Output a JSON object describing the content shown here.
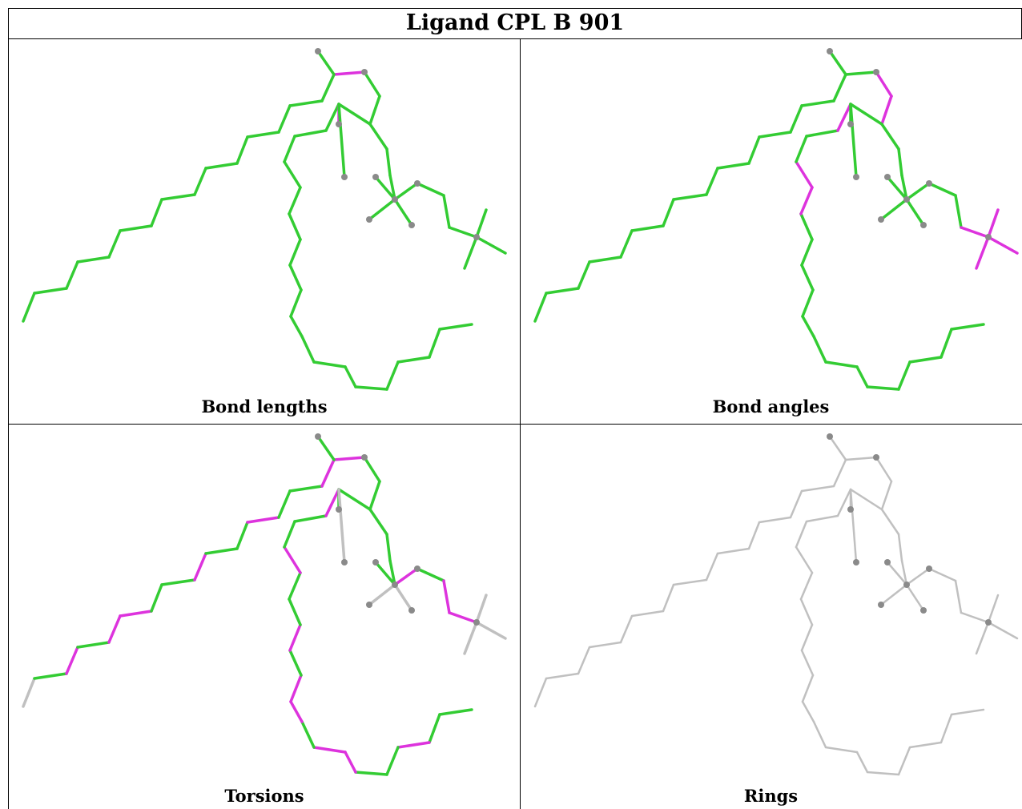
{
  "title": "Ligand CPL B 901",
  "colors": {
    "green": "#33cc33",
    "magenta": "#dd33dd",
    "grey": "#c0c0c0",
    "atom": "#8a8a8a"
  },
  "panels": [
    {
      "caption": "Bond lengths",
      "scheme": "lengths"
    },
    {
      "caption": "Bond angles",
      "scheme": "angles"
    },
    {
      "caption": "Torsions",
      "scheme": "torsions"
    },
    {
      "caption": "Rings",
      "scheme": "rings"
    }
  ]
}
